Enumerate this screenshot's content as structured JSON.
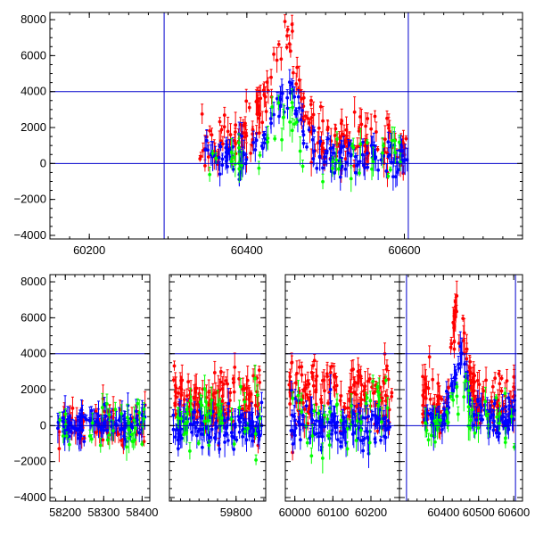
{
  "chart_data": [
    {
      "type": "scatter",
      "panel": "top",
      "xlim": [
        60150,
        60750
      ],
      "ylim": [
        -4200,
        8400
      ],
      "x_ticks": [
        60200,
        60400,
        60600
      ],
      "y_ticks": [
        -4000,
        -2000,
        0,
        2000,
        4000,
        6000,
        8000
      ],
      "x_tick_labels": [
        "60200",
        "60400",
        "60600"
      ],
      "y_tick_labels": [
        "−4000",
        "−2000",
        "0",
        "2000",
        "4000",
        "6000",
        "8000"
      ],
      "vlines": [
        60295,
        60605
      ],
      "hlines": [
        0,
        4000
      ],
      "grid": false,
      "series": [
        {
          "color": "#ff0000",
          "x_range": [
            60340,
            60605
          ],
          "peak_x": 60445,
          "peak_y": 7000,
          "base_y": 1200,
          "scatter": 1400,
          "n": 200
        },
        {
          "color": "#0000ff",
          "x_range": [
            60345,
            60605
          ],
          "peak_x": 60450,
          "peak_y": 3800,
          "base_y": 300,
          "scatter": 900,
          "n": 170
        },
        {
          "color": "#00ff00",
          "x_range": [
            60345,
            60605
          ],
          "peak_x": 60450,
          "peak_y": 2500,
          "base_y": 100,
          "scatter": 1400,
          "n": 55
        }
      ]
    },
    {
      "type": "scatter",
      "panel": "bottom",
      "broken_axis": true,
      "ylim": [
        -4200,
        8400
      ],
      "y_ticks": [
        -4000,
        -2000,
        0,
        2000,
        4000,
        6000,
        8000
      ],
      "y_tick_labels": [
        "−4000",
        "−2000",
        "0",
        "2000",
        "4000",
        "6000",
        "8000"
      ],
      "hlines": [
        0,
        4000
      ],
      "grid": false,
      "segments": [
        {
          "xlim": [
            58160,
            58420
          ],
          "x_ticks": [
            58200,
            58300,
            58400
          ],
          "x_tick_labels": [
            "58200",
            "58300",
            "58400"
          ],
          "series": [
            {
              "color": "#ff0000",
              "x_range": [
                58180,
                58410
              ],
              "base_y": 0,
              "scatter": 1000,
              "n": 70
            },
            {
              "color": "#0000ff",
              "x_range": [
                58180,
                58410
              ],
              "base_y": 0,
              "scatter": 700,
              "n": 110
            },
            {
              "color": "#00ff00",
              "x_range": [
                58180,
                58410
              ],
              "base_y": 0,
              "scatter": 1300,
              "n": 35
            }
          ]
        },
        {
          "xlim": [
            59620,
            59880
          ],
          "x_ticks": [
            59800
          ],
          "x_tick_labels": [
            "59800"
          ],
          "series": [
            {
              "color": "#ff0000",
              "x_range": [
                59630,
                59870
              ],
              "base_y": 1400,
              "scatter": 1500,
              "n": 140
            },
            {
              "color": "#0000ff",
              "x_range": [
                59630,
                59870
              ],
              "base_y": 0,
              "scatter": 900,
              "n": 130
            },
            {
              "color": "#00ff00",
              "x_range": [
                59630,
                59870
              ],
              "base_y": 500,
              "scatter": 1600,
              "n": 40
            }
          ]
        },
        {
          "xlim": [
            59975,
            60275
          ],
          "x_ticks": [
            60000,
            60100,
            60200
          ],
          "x_tick_labels": [
            "60000",
            "60100",
            "60200"
          ],
          "series": [
            {
              "color": "#ff0000",
              "x_range": [
                59985,
                60255
              ],
              "base_y": 1700,
              "scatter": 1600,
              "n": 150
            },
            {
              "color": "#0000ff",
              "x_range": [
                59985,
                60255
              ],
              "base_y": 0,
              "scatter": 1000,
              "n": 130
            },
            {
              "color": "#00ff00",
              "x_range": [
                59985,
                60255
              ],
              "base_y": 800,
              "scatter": 1700,
              "n": 40
            }
          ]
        },
        {
          "xlim": [
            60275,
            60625
          ],
          "x_ticks": [
            60400,
            60500,
            60600
          ],
          "x_tick_labels": [
            "60400",
            "60500",
            "60600"
          ],
          "vlines": [
            60295,
            60605
          ],
          "series": [
            {
              "color": "#ff0000",
              "x_range": [
                60340,
                60605
              ],
              "peak_x": 60445,
              "peak_y": 7000,
              "base_y": 1200,
              "scatter": 1400,
              "n": 150
            },
            {
              "color": "#0000ff",
              "x_range": [
                60345,
                60605
              ],
              "peak_x": 60450,
              "peak_y": 3800,
              "base_y": 300,
              "scatter": 900,
              "n": 130
            },
            {
              "color": "#00ff00",
              "x_range": [
                60345,
                60605
              ],
              "peak_x": 60450,
              "peak_y": 2500,
              "base_y": 100,
              "scatter": 1400,
              "n": 40
            }
          ]
        }
      ]
    }
  ]
}
